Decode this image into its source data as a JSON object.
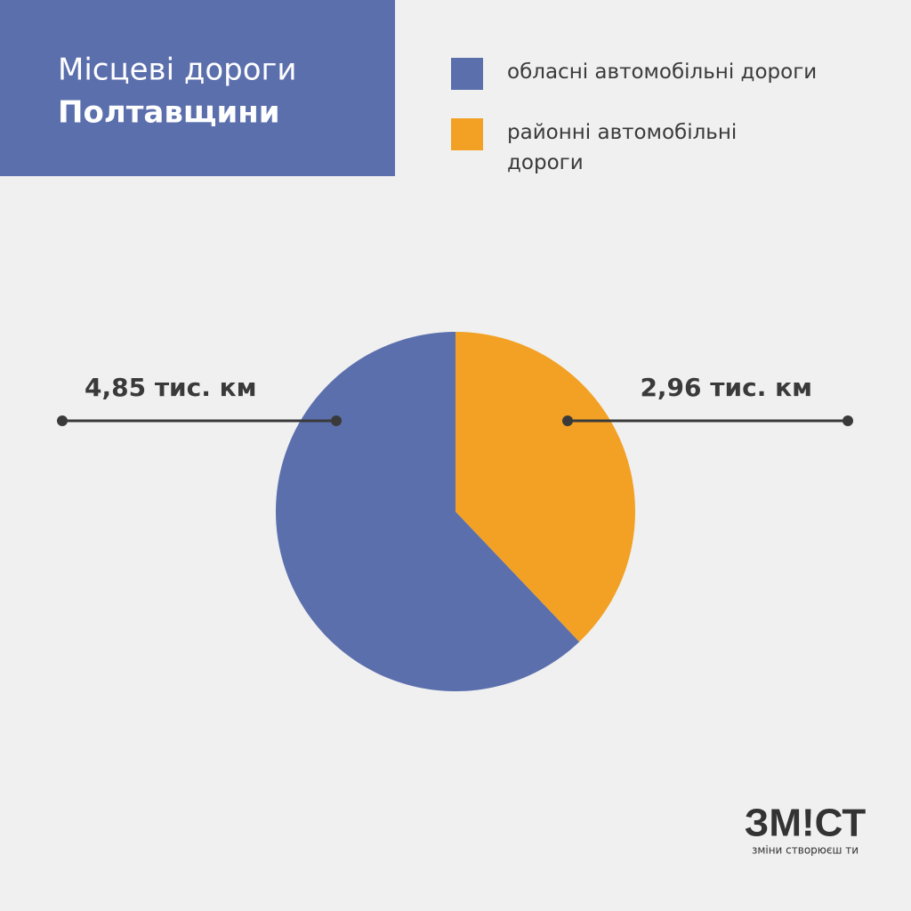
{
  "chart_data": {
    "type": "pie",
    "title": "Місцеві дороги",
    "subtitle": "Полтавщини",
    "categories": [
      "обласні автомобільні дороги",
      "районні автомобільні дороги"
    ],
    "values": [
      4.85,
      2.96
    ],
    "value_labels": [
      "4,85 тис. км",
      "2,96 тис. км"
    ],
    "colors": [
      "#5b6fad",
      "#f2a124"
    ]
  },
  "logo": {
    "name": "ЗМ!СТ",
    "tagline": "зміни створюєш ти"
  }
}
